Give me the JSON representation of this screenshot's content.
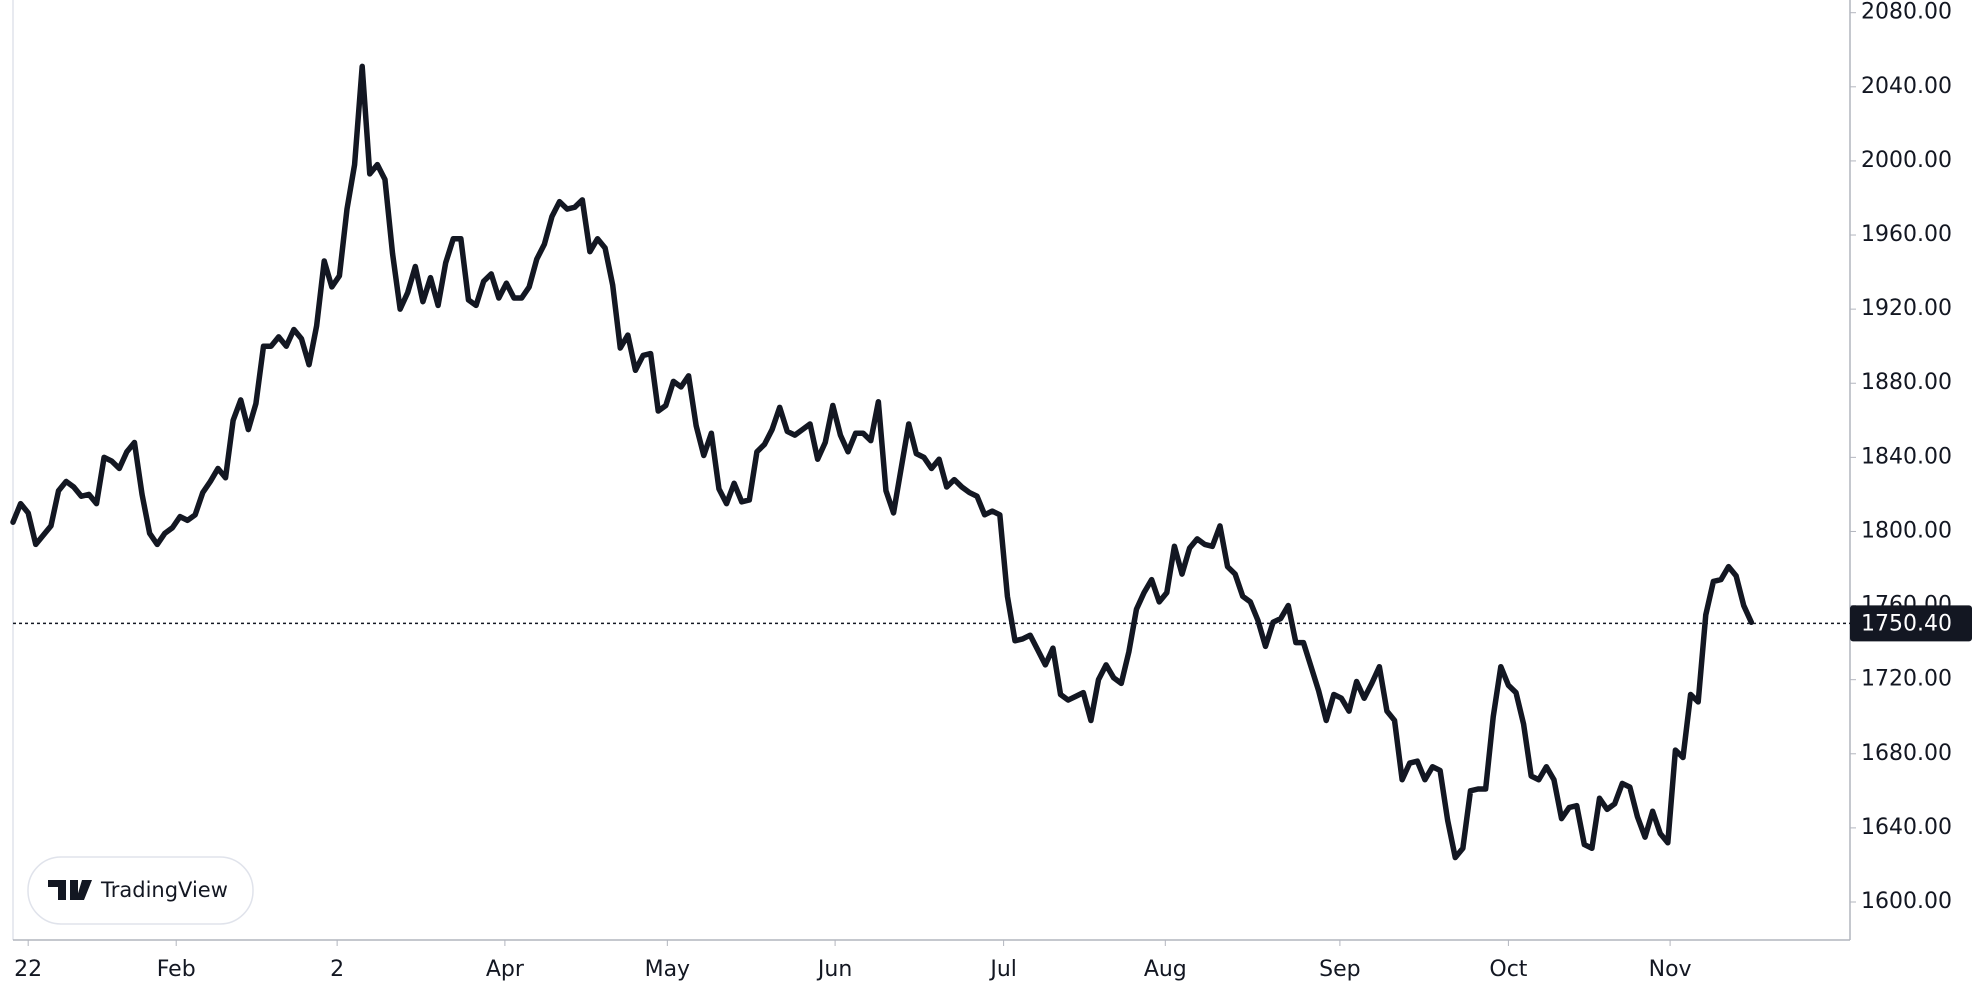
{
  "chart_data": {
    "type": "line",
    "color": "#131722",
    "values": [
      1805,
      1815,
      1810,
      1793,
      1798,
      1803,
      1822,
      1827,
      1824,
      1819,
      1820,
      1815,
      1840,
      1838,
      1834,
      1843,
      1848,
      1820,
      1799,
      1793,
      1799,
      1802,
      1808,
      1806,
      1809,
      1821,
      1827,
      1834,
      1829,
      1860,
      1871,
      1855,
      1869,
      1900,
      1900,
      1905,
      1900,
      1909,
      1904,
      1890,
      1911,
      1946,
      1932,
      1938,
      1974,
      1998,
      2051,
      1993,
      1998,
      1990,
      1950,
      1920,
      1929,
      1943,
      1924,
      1937,
      1922,
      1945,
      1958,
      1958,
      1925,
      1922,
      1935,
      1939,
      1926,
      1934,
      1926,
      1926,
      1932,
      1947,
      1955,
      1970,
      1978,
      1974,
      1975,
      1979,
      1951,
      1958,
      1953,
      1933,
      1899,
      1906,
      1887,
      1895,
      1896,
      1865,
      1868,
      1881,
      1878,
      1884,
      1857,
      1841,
      1853,
      1823,
      1815,
      1826,
      1816,
      1817,
      1843,
      1847,
      1855,
      1867,
      1854,
      1852,
      1855,
      1858,
      1839,
      1848,
      1868,
      1852,
      1843,
      1853,
      1853,
      1849,
      1870,
      1822,
      1810,
      1834,
      1858,
      1842,
      1840,
      1834,
      1839,
      1824,
      1828,
      1824,
      1821,
      1819,
      1809,
      1811,
      1809,
      1765,
      1741,
      1742,
      1744,
      1736,
      1728,
      1737,
      1712,
      1709,
      1711,
      1713,
      1698,
      1720,
      1728,
      1721,
      1718,
      1735,
      1758,
      1767,
      1774,
      1762,
      1767,
      1792,
      1777,
      1791,
      1796,
      1793,
      1792,
      1803,
      1781,
      1777,
      1765,
      1762,
      1752,
      1738,
      1751,
      1753,
      1760,
      1740,
      1740,
      1727,
      1714,
      1698,
      1712,
      1710,
      1703,
      1719,
      1710,
      1718,
      1727,
      1703,
      1698,
      1666,
      1675,
      1676,
      1666,
      1673,
      1671,
      1644,
      1624,
      1629,
      1660,
      1661,
      1661,
      1700,
      1727,
      1717,
      1713,
      1696,
      1668,
      1666,
      1673,
      1666,
      1645,
      1651,
      1652,
      1631,
      1629,
      1656,
      1650,
      1653,
      1664,
      1662,
      1646,
      1635,
      1649,
      1637,
      1632,
      1682,
      1678,
      1712,
      1708,
      1755,
      1773,
      1774,
      1781,
      1776,
      1760,
      1751
    ],
    "xlim": [
      0,
      242
    ],
    "xticks": [
      {
        "value": 2,
        "label": "22"
      },
      {
        "value": 21.5,
        "label": "Feb"
      },
      {
        "value": 42.7,
        "label": "2"
      },
      {
        "value": 64.8,
        "label": "Apr"
      },
      {
        "value": 86.2,
        "label": "May"
      },
      {
        "value": 108.3,
        "label": "Jun"
      },
      {
        "value": 130.5,
        "label": "Jul"
      },
      {
        "value": 151.8,
        "label": "Aug"
      },
      {
        "value": 174.8,
        "label": "Sep"
      },
      {
        "value": 197,
        "label": "Oct"
      },
      {
        "value": 218.3,
        "label": "Nov"
      }
    ],
    "ylim": [
      1600,
      2080
    ],
    "yticks": [
      {
        "value": 1600,
        "label": "1600.00"
      },
      {
        "value": 1640,
        "label": "1640.00"
      },
      {
        "value": 1680,
        "label": "1680.00"
      },
      {
        "value": 1720,
        "label": "1720.00"
      },
      {
        "value": 1760,
        "label": "1760.00"
      },
      {
        "value": 1800,
        "label": "1800.00"
      },
      {
        "value": 1840,
        "label": "1840.00"
      },
      {
        "value": 1880,
        "label": "1880.00"
      },
      {
        "value": 1920,
        "label": "1920.00"
      },
      {
        "value": 1960,
        "label": "1960.00"
      },
      {
        "value": 2000,
        "label": "2000.00"
      },
      {
        "value": 2040,
        "label": "2040.00"
      },
      {
        "value": 2080,
        "label": "2080.00"
      }
    ],
    "last_price": {
      "value": 1750.4,
      "label": "1750.40"
    },
    "watermark": "TradingView"
  }
}
